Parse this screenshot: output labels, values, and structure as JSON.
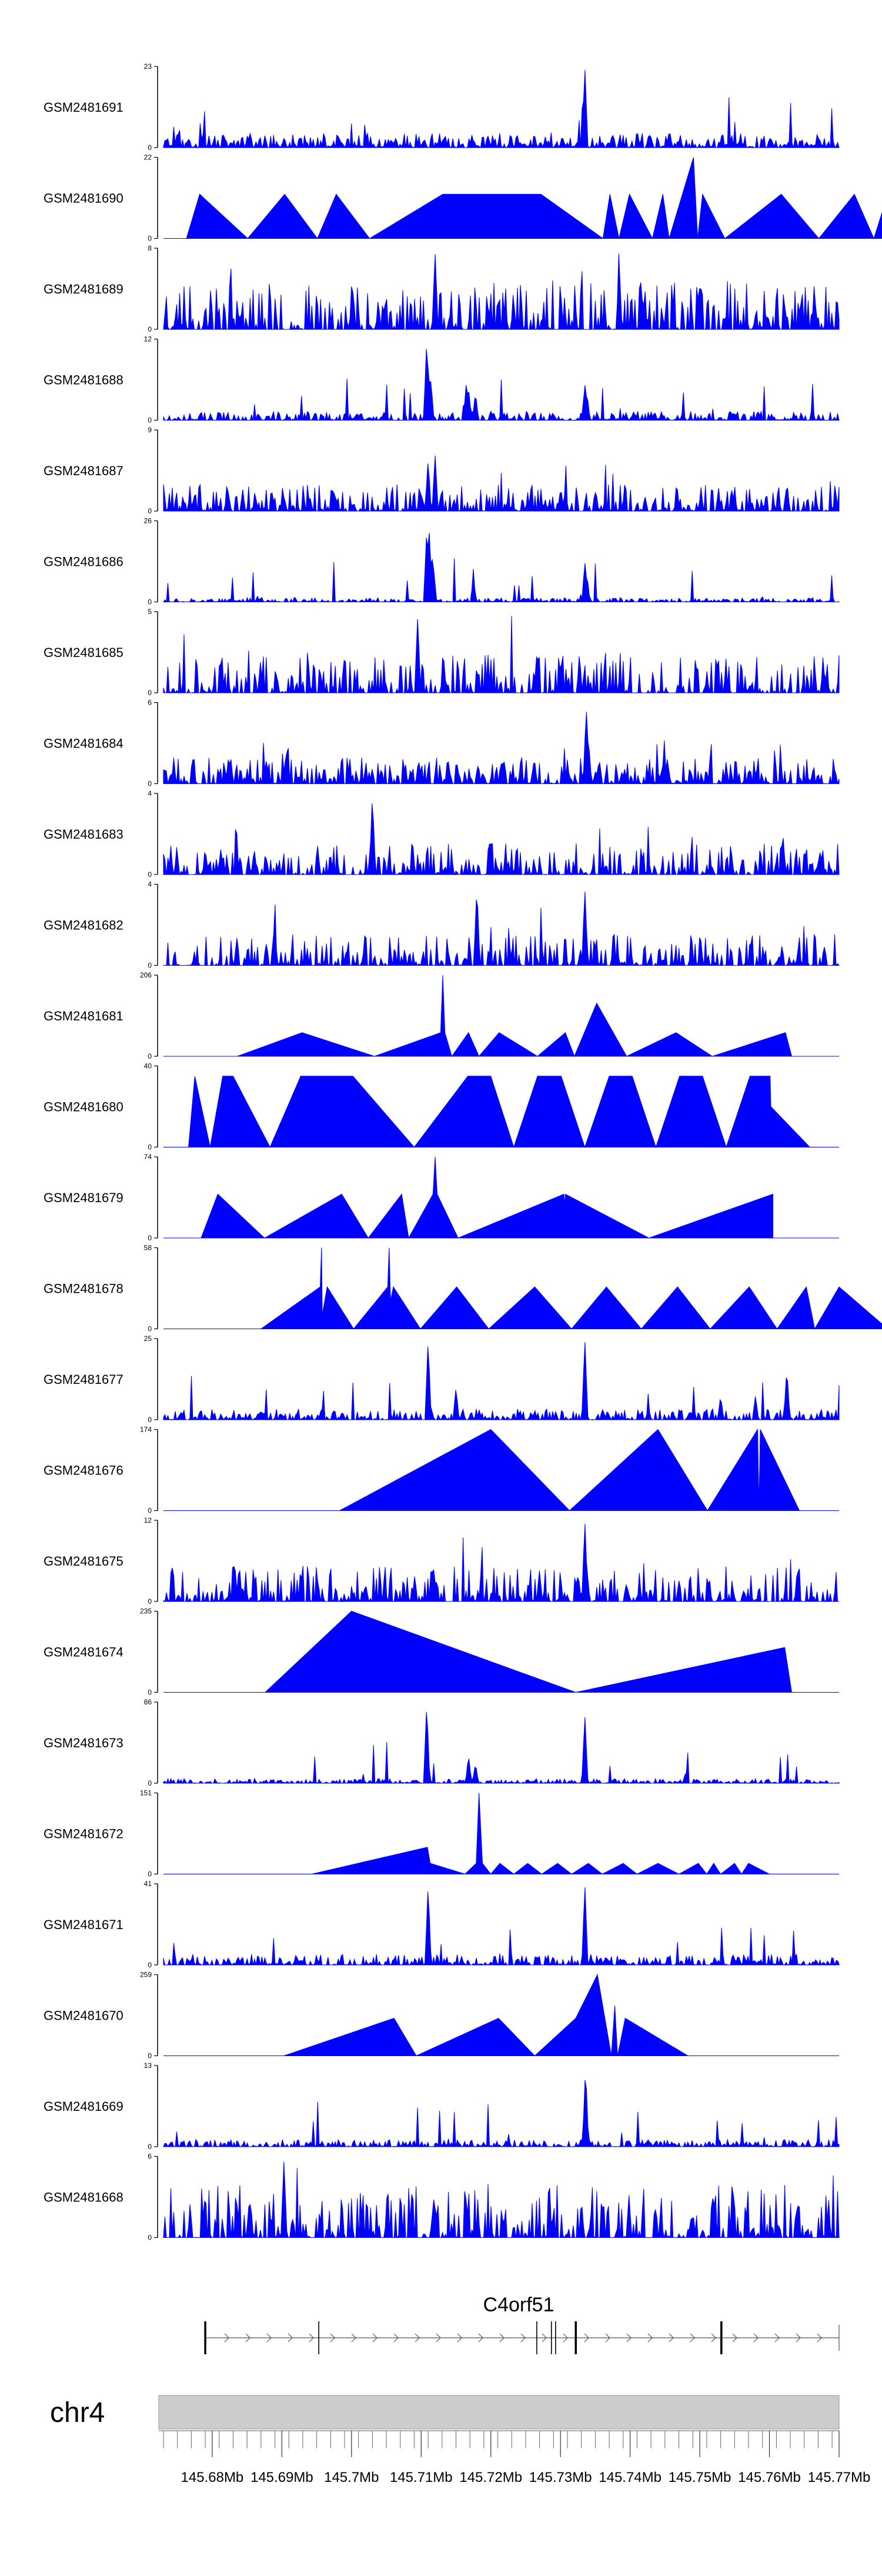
{
  "chart_data": {
    "type": "area",
    "title": "",
    "chromosome": "chr4",
    "gene": "C4orf51",
    "fill_color": "#0000ff",
    "axis_color": "#000000",
    "xlim": [
      145.673,
      145.77
    ],
    "genome_ticks": [
      145.68,
      145.69,
      145.7,
      145.71,
      145.72,
      145.73,
      145.74,
      145.75,
      145.76,
      145.77
    ],
    "genome_tick_labels": [
      "145.68Mb",
      "145.69Mb",
      "145.7Mb",
      "145.71Mb",
      "145.72Mb",
      "145.73Mb",
      "145.74Mb",
      "145.75Mb",
      "145.76Mb",
      "145.77Mb"
    ],
    "gene_model": {
      "start": 145.679,
      "end": 145.77,
      "strand": "+",
      "exons": [
        145.679,
        145.6953,
        145.7266,
        145.7287,
        145.7293,
        145.7322,
        145.7531
      ]
    },
    "tracks": [
      {
        "name": "GSM2481691",
        "ylim": [
          0,
          23
        ],
        "style": "dense",
        "seed": 11,
        "base": 0.16,
        "gap": 0.0,
        "peaks": [
          [
            145.7335,
            1.0
          ]
        ]
      },
      {
        "name": "GSM2481690",
        "ylim": [
          0,
          22
        ],
        "style": "sparse",
        "points": [
          [
            145.6763,
            0
          ],
          [
            145.6782,
            12
          ],
          [
            145.6851,
            0
          ],
          [
            145.6904,
            12
          ],
          [
            145.6951,
            0
          ],
          [
            145.6978,
            12
          ],
          [
            145.7026,
            0
          ],
          [
            145.7131,
            12
          ],
          [
            145.7272,
            12
          ],
          [
            145.7361,
            0
          ],
          [
            145.7371,
            12
          ],
          [
            145.7384,
            0
          ],
          [
            145.7399,
            12
          ],
          [
            145.7432,
            0
          ],
          [
            145.7447,
            12
          ],
          [
            145.7456,
            0
          ],
          [
            145.7491,
            22
          ],
          [
            145.7497,
            0
          ],
          [
            145.7504,
            12
          ],
          [
            145.7536,
            0
          ],
          [
            145.7617,
            12
          ],
          [
            145.7671,
            0
          ],
          [
            145.7722,
            12
          ],
          [
            145.775,
            0
          ],
          [
            145.777,
            12
          ]
        ]
      },
      {
        "name": "GSM2481689",
        "ylim": [
          0,
          8
        ],
        "style": "dense",
        "seed": 23,
        "base": 0.55,
        "gap": 0.25,
        "peaks": [
          [
            145.712,
            0.95
          ]
        ]
      },
      {
        "name": "GSM2481688",
        "ylim": [
          0,
          12
        ],
        "style": "dense",
        "seed": 37,
        "base": 0.1,
        "gap": 0.1,
        "peaks": [
          [
            145.7108,
            1.0
          ],
          [
            145.711,
            0.75
          ],
          [
            145.7114,
            0.5
          ],
          [
            145.7165,
            0.5
          ],
          [
            145.7168,
            0.4
          ],
          [
            145.7178,
            0.35
          ],
          [
            145.7335,
            0.45
          ],
          [
            145.7338,
            0.35
          ]
        ]
      },
      {
        "name": "GSM2481687",
        "ylim": [
          0,
          9
        ],
        "style": "dense",
        "seed": 41,
        "base": 0.3,
        "gap": 0.15,
        "peaks": [
          [
            145.711,
            0.65
          ],
          [
            145.712,
            0.7
          ]
        ]
      },
      {
        "name": "GSM2481686",
        "ylim": [
          0,
          26
        ],
        "style": "dense",
        "seed": 53,
        "base": 0.05,
        "gap": 0.1,
        "peaks": [
          [
            145.7108,
            0.9
          ],
          [
            145.7111,
            1.0
          ],
          [
            145.7115,
            0.65
          ],
          [
            145.7118,
            0.4
          ],
          [
            145.7175,
            0.3
          ],
          [
            145.7335,
            0.5
          ],
          [
            145.7338,
            0.35
          ]
        ]
      },
      {
        "name": "GSM2481685",
        "ylim": [
          0,
          5
        ],
        "style": "dense",
        "seed": 67,
        "base": 0.45,
        "gap": 0.2,
        "peaks": [
          [
            145.7095,
            0.95
          ]
        ]
      },
      {
        "name": "GSM2481684",
        "ylim": [
          0,
          6
        ],
        "style": "dense",
        "seed": 71,
        "base": 0.3,
        "gap": 0.15,
        "peaks": [
          [
            145.7337,
            0.95
          ],
          [
            145.734,
            0.6
          ]
        ]
      },
      {
        "name": "GSM2481683",
        "ylim": [
          0,
          4
        ],
        "style": "dense",
        "seed": 83,
        "base": 0.35,
        "gap": 0.25,
        "peaks": [
          [
            145.703,
            1.0
          ]
        ]
      },
      {
        "name": "GSM2481682",
        "ylim": [
          0,
          4
        ],
        "style": "dense",
        "seed": 97,
        "base": 0.35,
        "gap": 0.25,
        "peaks": [
          [
            145.718,
            1.0
          ],
          [
            145.7335,
            0.95
          ]
        ]
      },
      {
        "name": "GSM2481681",
        "ylim": [
          0,
          206
        ],
        "style": "sparse",
        "points": [
          [
            145.6836,
            0
          ],
          [
            145.6929,
            60
          ],
          [
            145.7033,
            0
          ],
          [
            145.7128,
            60
          ],
          [
            145.7131,
            206
          ],
          [
            145.7134,
            60
          ],
          [
            145.7144,
            0
          ],
          [
            145.7168,
            60
          ],
          [
            145.7183,
            0
          ],
          [
            145.7212,
            60
          ],
          [
            145.7267,
            0
          ],
          [
            145.7307,
            60
          ],
          [
            145.732,
            0
          ],
          [
            145.7352,
            135
          ],
          [
            145.7395,
            0
          ],
          [
            145.7466,
            60
          ],
          [
            145.7518,
            0
          ],
          [
            145.7623,
            60
          ],
          [
            145.7632,
            0
          ]
        ]
      },
      {
        "name": "GSM2481680",
        "ylim": [
          0,
          40
        ],
        "style": "sparse",
        "points": [
          [
            145.6766,
            0
          ],
          [
            145.6775,
            35
          ],
          [
            145.6797,
            0
          ],
          [
            145.6815,
            35
          ],
          [
            145.683,
            35
          ],
          [
            145.6883,
            0
          ],
          [
            145.6927,
            35
          ],
          [
            145.7002,
            35
          ],
          [
            145.709,
            0
          ],
          [
            145.7167,
            35
          ],
          [
            145.72,
            35
          ],
          [
            145.7233,
            0
          ],
          [
            145.7267,
            35
          ],
          [
            145.7301,
            35
          ],
          [
            145.7335,
            0
          ],
          [
            145.737,
            35
          ],
          [
            145.7403,
            35
          ],
          [
            145.7437,
            0
          ],
          [
            145.7471,
            35
          ],
          [
            145.7504,
            35
          ],
          [
            145.7538,
            0
          ],
          [
            145.7572,
            35
          ],
          [
            145.7601,
            35
          ],
          [
            145.7602,
            20
          ],
          [
            145.7658,
            0
          ]
        ]
      },
      {
        "name": "GSM2481679",
        "ylim": [
          0,
          74
        ],
        "style": "sparse",
        "points": [
          [
            145.6784,
            0
          ],
          [
            145.6808,
            40
          ],
          [
            145.6875,
            0
          ],
          [
            145.6986,
            40
          ],
          [
            145.7024,
            0
          ],
          [
            145.7072,
            40
          ],
          [
            145.7082,
            0
          ],
          [
            145.7117,
            40
          ],
          [
            145.712,
            74
          ],
          [
            145.7123,
            40
          ],
          [
            145.7153,
            0
          ],
          [
            145.7305,
            40
          ],
          [
            145.7306,
            30
          ],
          [
            145.7307,
            40
          ],
          [
            145.7427,
            0
          ],
          [
            145.7605,
            40
          ]
        ]
      },
      {
        "name": "GSM2481678",
        "ylim": [
          0,
          58
        ],
        "style": "sparse",
        "points": [
          [
            145.687,
            0
          ],
          [
            145.6955,
            30
          ],
          [
            145.6957,
            58
          ],
          [
            145.6958,
            10
          ],
          [
            145.6965,
            30
          ],
          [
            145.7003,
            0
          ],
          [
            145.7052,
            30
          ],
          [
            145.7054,
            58
          ],
          [
            145.7056,
            20
          ],
          [
            145.706,
            30
          ],
          [
            145.7099,
            0
          ],
          [
            145.7151,
            30
          ],
          [
            145.7197,
            0
          ],
          [
            145.7263,
            30
          ],
          [
            145.7316,
            0
          ],
          [
            145.7366,
            30
          ],
          [
            145.7416,
            0
          ],
          [
            145.7468,
            30
          ],
          [
            145.7515,
            0
          ],
          [
            145.7571,
            30
          ],
          [
            145.7611,
            0
          ],
          [
            145.7653,
            30
          ],
          [
            145.7665,
            0
          ],
          [
            145.77,
            30
          ],
          [
            145.777,
            0
          ]
        ]
      },
      {
        "name": "GSM2481677",
        "ylim": [
          0,
          25
        ],
        "style": "dense",
        "seed": 101,
        "base": 0.12,
        "gap": 0.1,
        "peaks": [
          [
            145.711,
            1.0
          ],
          [
            145.715,
            0.4
          ],
          [
            145.7335,
            1.0
          ],
          [
            145.753,
            0.3
          ],
          [
            145.758,
            0.3
          ],
          [
            145.7625,
            0.65
          ]
        ]
      },
      {
        "name": "GSM2481676",
        "ylim": [
          0,
          174
        ],
        "style": "sparse",
        "points": [
          [
            145.6983,
            0
          ],
          [
            145.72,
            174
          ],
          [
            145.7313,
            0
          ],
          [
            145.744,
            174
          ],
          [
            145.7511,
            0
          ],
          [
            145.7583,
            174
          ],
          [
            145.7585,
            10
          ],
          [
            145.7587,
            174
          ],
          [
            145.7643,
            0
          ]
        ]
      },
      {
        "name": "GSM2481675",
        "ylim": [
          0,
          12
        ],
        "style": "dense",
        "seed": 109,
        "base": 0.4,
        "gap": 0.2,
        "peaks": [
          [
            145.7335,
            1.0
          ]
        ]
      },
      {
        "name": "GSM2481674",
        "ylim": [
          0,
          235
        ],
        "style": "sparse",
        "points": [
          [
            145.6876,
            0
          ],
          [
            145.7,
            235
          ],
          [
            145.7322,
            0
          ],
          [
            145.7622,
            130
          ],
          [
            145.7632,
            0
          ]
        ]
      },
      {
        "name": "GSM2481673",
        "ylim": [
          0,
          86
        ],
        "style": "dense",
        "seed": 113,
        "base": 0.05,
        "gap": 0.1,
        "peaks": [
          [
            145.7108,
            1.0
          ],
          [
            145.7168,
            0.35
          ],
          [
            145.7178,
            0.25
          ],
          [
            145.7335,
            0.85
          ],
          [
            145.748,
            0.15
          ]
        ]
      },
      {
        "name": "GSM2481672",
        "ylim": [
          0,
          151
        ],
        "style": "sparse",
        "points": [
          [
            145.6943,
            0
          ],
          [
            145.7109,
            50
          ],
          [
            145.7113,
            20
          ],
          [
            145.7163,
            0
          ],
          [
            145.7179,
            20
          ],
          [
            145.7183,
            151
          ],
          [
            145.7188,
            20
          ],
          [
            145.72,
            0
          ],
          [
            145.7213,
            20
          ],
          [
            145.7233,
            0
          ],
          [
            145.7253,
            20
          ],
          [
            145.7273,
            0
          ],
          [
            145.7296,
            20
          ],
          [
            145.7316,
            0
          ],
          [
            145.734,
            20
          ],
          [
            145.736,
            0
          ],
          [
            145.739,
            20
          ],
          [
            145.741,
            0
          ],
          [
            145.744,
            20
          ],
          [
            145.747,
            0
          ],
          [
            145.7498,
            20
          ],
          [
            145.751,
            0
          ],
          [
            145.752,
            20
          ],
          [
            145.753,
            0
          ],
          [
            145.755,
            20
          ],
          [
            145.756,
            0
          ],
          [
            145.757,
            20
          ],
          [
            145.76,
            0
          ]
        ]
      },
      {
        "name": "GSM2481671",
        "ylim": [
          0,
          41
        ],
        "style": "dense",
        "seed": 127,
        "base": 0.12,
        "gap": 0.15,
        "peaks": [
          [
            145.711,
            1.0
          ],
          [
            145.7335,
            1.0
          ]
        ]
      },
      {
        "name": "GSM2481670",
        "ylim": [
          0,
          259
        ],
        "style": "sparse",
        "points": [
          [
            145.6903,
            0
          ],
          [
            145.7061,
            120
          ],
          [
            145.7093,
            0
          ],
          [
            145.7211,
            120
          ],
          [
            145.7263,
            0
          ],
          [
            145.7322,
            120
          ],
          [
            145.7353,
            259
          ],
          [
            145.7373,
            0
          ],
          [
            145.7378,
            160
          ],
          [
            145.7382,
            0
          ],
          [
            145.7393,
            120
          ],
          [
            145.7483,
            0
          ]
        ]
      },
      {
        "name": "GSM2481669",
        "ylim": [
          0,
          13
        ],
        "style": "dense",
        "seed": 131,
        "base": 0.08,
        "gap": 0.05,
        "peaks": [
          [
            145.7336,
            1.0
          ]
        ]
      },
      {
        "name": "GSM2481668",
        "ylim": [
          0,
          6
        ],
        "style": "dense",
        "seed": 137,
        "base": 0.6,
        "gap": 0.35,
        "peaks": [
          [
            145.6903,
            0.95
          ]
        ]
      }
    ]
  }
}
